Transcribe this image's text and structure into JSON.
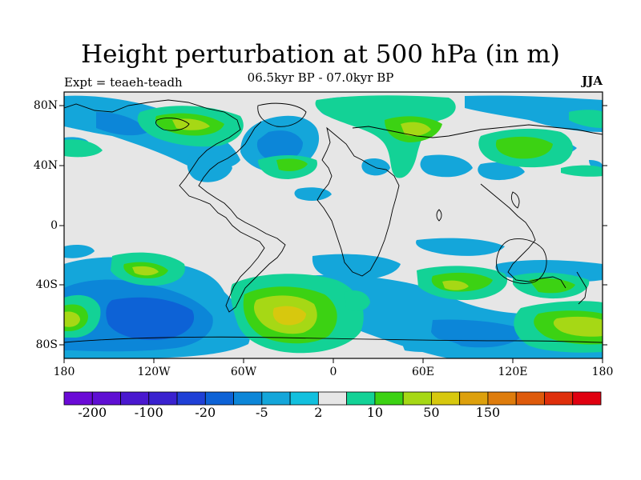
{
  "title": "Height perturbation at 500 hPa (in m)",
  "subtitle": "06.5kyr BP - 07.0kyr BP",
  "left_label": "Expt = teaeh-teadh",
  "right_label": "JJA",
  "lat_ticks": [
    "80N",
    "40N",
    "0",
    "40S",
    "80S"
  ],
  "lon_ticks": [
    "180",
    "120W",
    "60W",
    "0",
    "60E",
    "120E",
    "180"
  ],
  "colorbar": {
    "colors": [
      "#6a0ad6",
      "#5f0fd3",
      "#4a18cf",
      "#3a22cf",
      "#1f40d6",
      "#0d62d6",
      "#0c86d8",
      "#14a6da",
      "#12c0de",
      "#e6e6e6",
      "#13d296",
      "#3cd213",
      "#a6d815",
      "#d7c80e",
      "#dda00c",
      "#de7c0c",
      "#de5a0b",
      "#df2f0b",
      "#e00010"
    ],
    "labels": [
      "-200",
      "-100",
      "-20",
      "-5",
      "2",
      "10",
      "50",
      "150"
    ]
  }
}
